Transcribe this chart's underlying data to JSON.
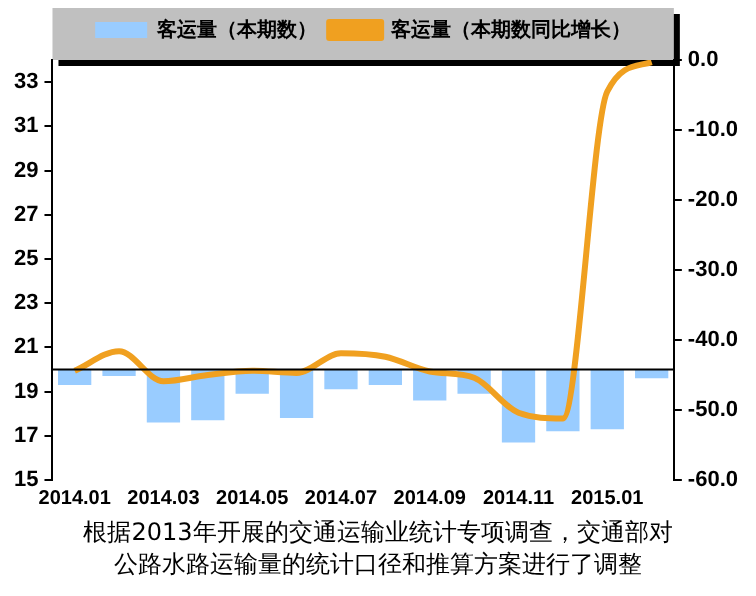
{
  "chart_data": {
    "type": "bar",
    "categories": [
      "2014.01",
      null,
      "2014.03",
      null,
      "2014.05",
      null,
      "2014.07",
      null,
      "2014.09",
      null,
      "2014.11",
      null,
      "2015.01",
      null
    ],
    "series": [
      {
        "name": "客运量（本期数）",
        "type": "bar",
        "color": "#99ccff",
        "base": [
          20,
          20,
          20,
          20,
          20,
          20,
          20,
          20,
          20,
          20,
          20,
          20,
          20,
          20
        ],
        "values": [
          -0.7,
          -0.3,
          -2.4,
          -2.3,
          -1.1,
          -2.2,
          -0.9,
          -0.7,
          -1.4,
          -1.1,
          -3.3,
          -2.8,
          -2.7,
          -0.4
        ]
      },
      {
        "name": "客运量（本期数同比增长）",
        "type": "line",
        "axis": "y2",
        "color": "#f0a020",
        "values": [
          -44.4,
          -41.6,
          -45.9,
          -45.0,
          -44.4,
          -44.7,
          -41.9,
          -42.4,
          -44.5,
          -45.4,
          -50.4,
          -51.2,
          -4.5,
          -0.3
        ]
      }
    ],
    "ylim": [
      15,
      34
    ],
    "yticks": [
      15,
      17,
      19,
      21,
      23,
      25,
      27,
      29,
      31,
      33
    ],
    "y2lim": [
      -60,
      0
    ],
    "y2ticks": [
      {
        "value": -60,
        "label": "-60.0"
      },
      {
        "value": -50,
        "label": "-50.0"
      },
      {
        "value": -40,
        "label": "-40.0"
      },
      {
        "value": -30,
        "label": "-30.0"
      },
      {
        "value": -20,
        "label": "-20.0"
      },
      {
        "value": -10,
        "label": "-10.0"
      },
      {
        "value": 0,
        "label": "0.0"
      }
    ],
    "ref_lines": [
      {
        "axis": "y",
        "value": 20,
        "color": "#000000"
      }
    ],
    "grid": false,
    "legend": "top",
    "marker": "none",
    "line_style": "solid",
    "annotations": [
      "根据2013年开展的交通运输业统计专项调查，交通部对公路水路运输量的统计口径和推算方案进行了调整"
    ]
  }
}
